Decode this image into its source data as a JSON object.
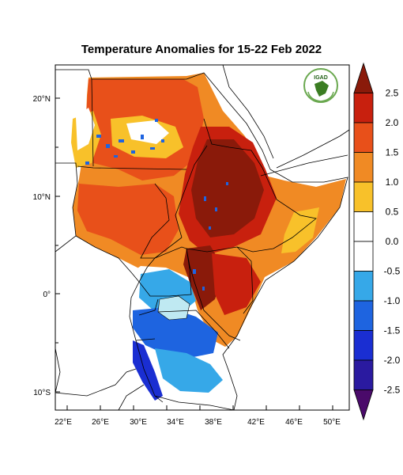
{
  "title": "Temperature Anomalies for 15-22 Feb 2022",
  "logo": {
    "text": "IGAD",
    "colors": {
      "ring": "#6aa84f",
      "fill": "#3b7d23",
      "text": "#1f5f14"
    }
  },
  "axes": {
    "lon_labels": [
      "22°E",
      "26°E",
      "30°E",
      "34°E",
      "38°E",
      "42°E",
      "46°E",
      "50°E"
    ],
    "lat_labels": [
      "20°N",
      "10°N",
      "0°",
      "10°S"
    ]
  },
  "colorbar": {
    "labels": [
      "2.5",
      "2.0",
      "1.5",
      "1.0",
      "0.5",
      "0.0",
      "-0.5",
      "-1.0",
      "-1.5",
      "-2.0",
      "-2.5"
    ],
    "colors": [
      "#8a1a0a",
      "#c8200e",
      "#e8501a",
      "#f08a24",
      "#f8c12a",
      "#ffffff",
      "#ffffff",
      "#36a8e8",
      "#1e64e0",
      "#1a2ed2",
      "#2a1aa0",
      "#4a0a6a"
    ]
  }
}
